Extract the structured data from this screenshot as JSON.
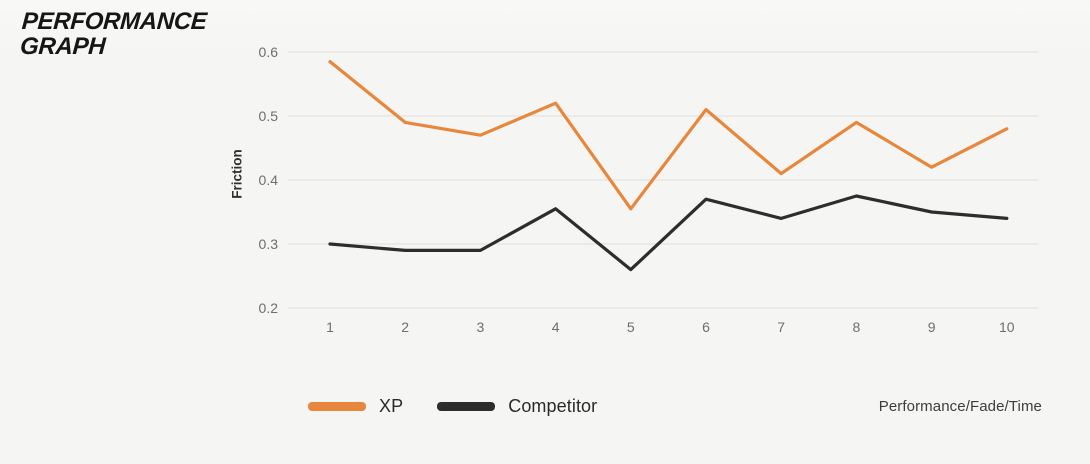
{
  "page": {
    "background": "#f5f5f3"
  },
  "title": {
    "line1": "PERFORMANCE",
    "line2": "GRAPH"
  },
  "chart_data": {
    "type": "line",
    "x": [
      1,
      2,
      3,
      4,
      5,
      6,
      7,
      8,
      9,
      10
    ],
    "series": [
      {
        "name": "XP",
        "color": "#E8873B",
        "values": [
          0.585,
          0.49,
          0.47,
          0.52,
          0.355,
          0.51,
          0.41,
          0.49,
          0.42,
          0.48
        ]
      },
      {
        "name": "Competitor",
        "color": "#2D2D2D",
        "values": [
          0.3,
          0.29,
          0.29,
          0.355,
          0.26,
          0.37,
          0.34,
          0.375,
          0.35,
          0.34
        ]
      }
    ],
    "ylabel": "Friction",
    "xlabel": "Performance/Fade/Time",
    "ylim": [
      0.2,
      0.6
    ],
    "yticks": [
      0.2,
      0.3,
      0.4,
      0.5,
      0.6
    ],
    "grid": true,
    "legend_position": "bottom-left",
    "gridline_color": "#e5e4e1",
    "tick_color": "#6e6e6e"
  }
}
